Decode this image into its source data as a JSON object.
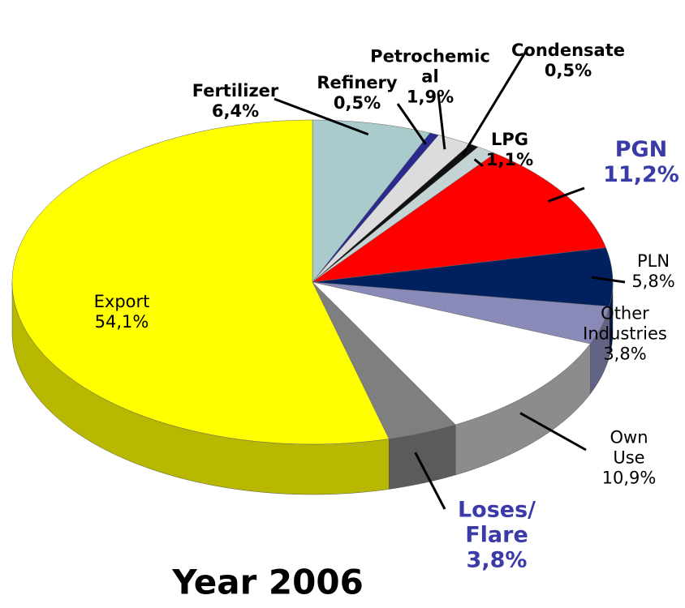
{
  "chart_data": {
    "type": "pie",
    "title": "Year 2006",
    "categories": [
      "Fertilizer",
      "Refinery",
      "Petrochemic\nal",
      "Condensate",
      "LPG",
      "PGN",
      "PLN",
      "Other\nIndustries",
      "Own Use",
      "Loses/\nFlare",
      "Export"
    ],
    "values": [
      6.4,
      0.5,
      1.9,
      0.5,
      1.1,
      11.2,
      5.8,
      3.8,
      10.9,
      3.8,
      54.1
    ],
    "value_labels": [
      "6,4%",
      "0,5%",
      "1,9%",
      "0,5%",
      "1,1%",
      "11,2%",
      "5,8%",
      "3,8%",
      "10,9%",
      "3,8%",
      "54,1%"
    ],
    "colors": [
      "#a9cbcb",
      "#2b2b8f",
      "#dcdcdc",
      "#111111",
      "#c4d4d4",
      "#ff0000",
      "#00205e",
      "#8a8ab8",
      "#ffffff",
      "#7f7f7f",
      "#ffff00"
    ]
  }
}
